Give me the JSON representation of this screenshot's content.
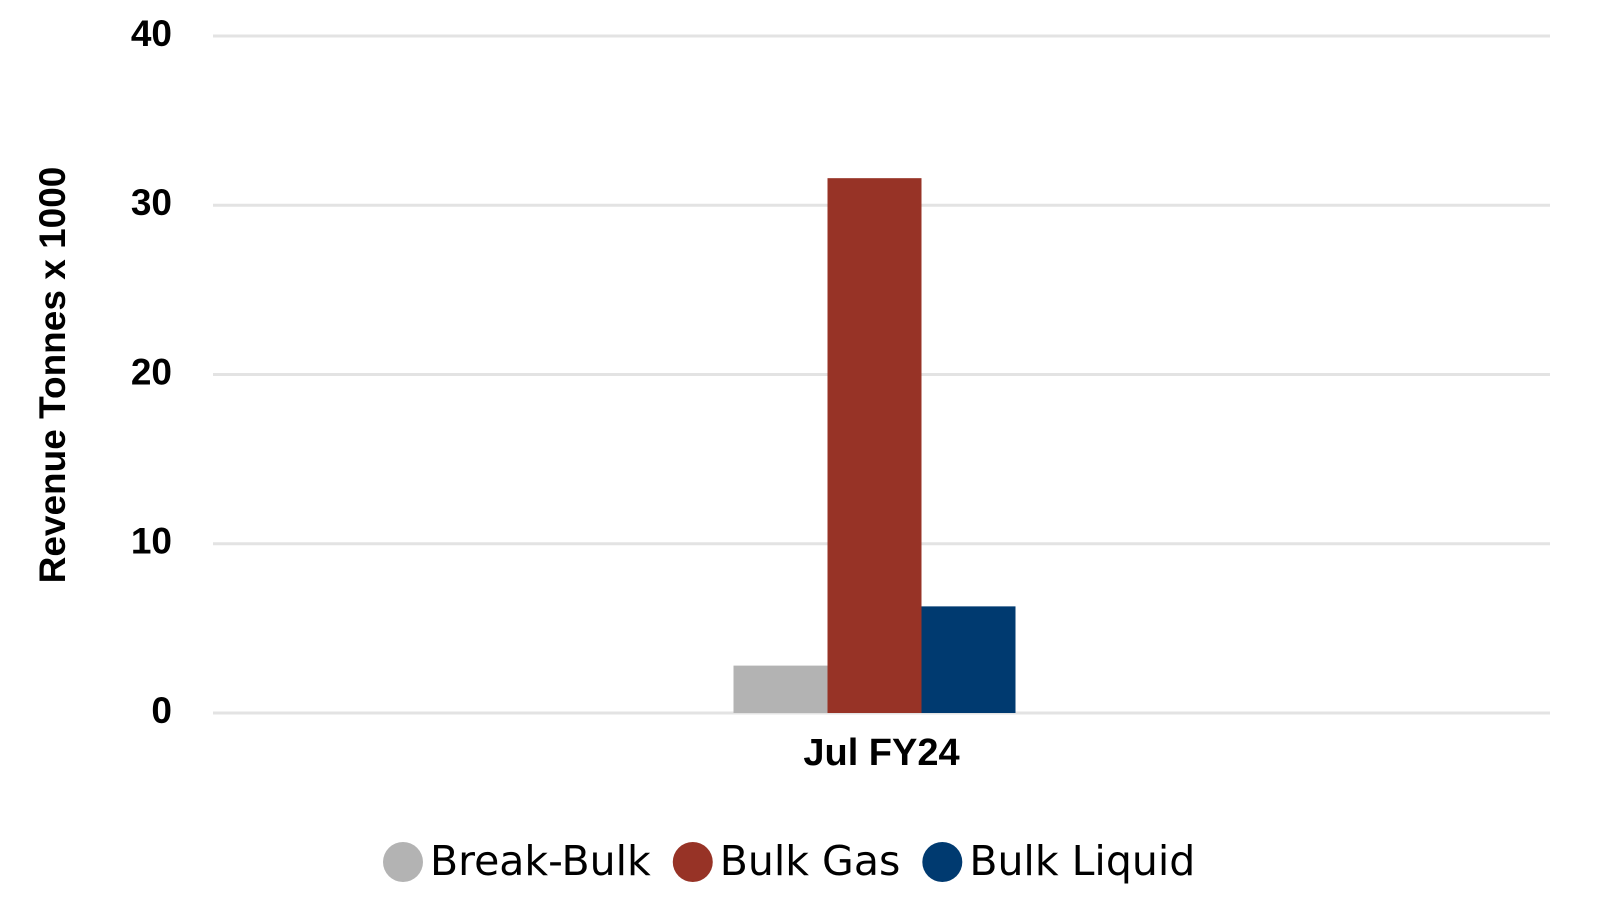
{
  "chart_data": {
    "type": "bar",
    "y_label": "Revenue Tonnes x 1000",
    "categories": [
      "Jul FY24"
    ],
    "series": [
      {
        "name": "Break-Bulk",
        "color": "#b3b3b3",
        "values": [
          2.8
        ]
      },
      {
        "name": "Bulk Gas",
        "color": "#973326",
        "values": [
          31.6
        ]
      },
      {
        "name": "Bulk Liquid",
        "color": "#003a70",
        "values": [
          6.3
        ]
      }
    ],
    "ylim": [
      0,
      40
    ],
    "yticks": [
      0,
      10,
      20,
      30,
      40
    ],
    "grid": true,
    "legend": "bottom"
  }
}
